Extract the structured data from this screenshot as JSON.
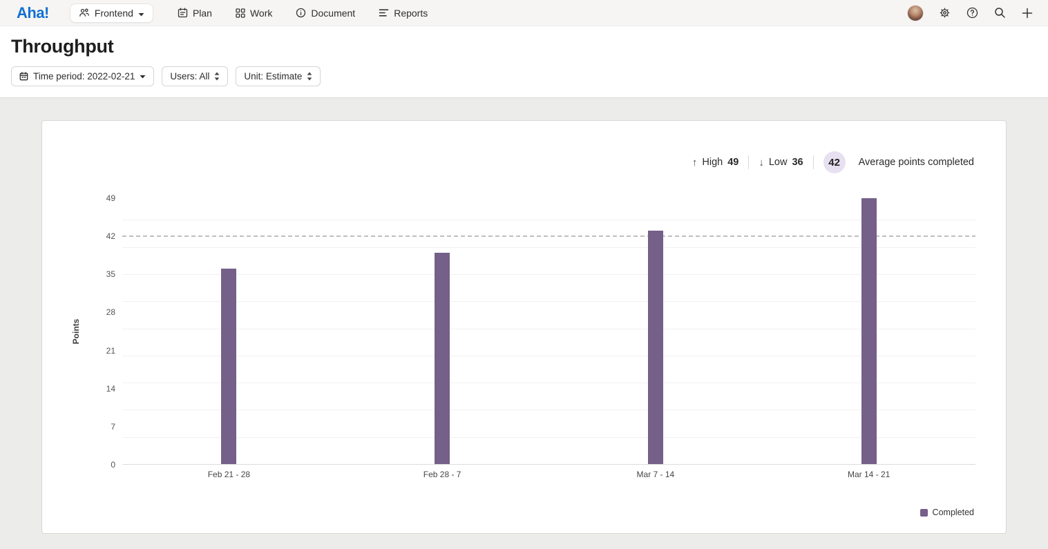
{
  "nav": {
    "logo": "Aha!",
    "workspace": {
      "label": "Frontend"
    },
    "items": [
      {
        "label": "Plan"
      },
      {
        "label": "Work"
      },
      {
        "label": "Document"
      },
      {
        "label": "Reports"
      }
    ]
  },
  "header": {
    "title": "Throughput"
  },
  "filters": {
    "time_period": {
      "label": "Time period: 2022-02-21"
    },
    "users": {
      "label": "Users: All"
    },
    "unit": {
      "label": "Unit: Estimate"
    }
  },
  "stats": {
    "high_label": "High",
    "high_value": "49",
    "low_label": "Low",
    "low_value": "36",
    "average_value": "42",
    "average_label": "Average points completed"
  },
  "icons": {
    "up_arrow": "↑",
    "down_arrow": "↓"
  },
  "chart_data": {
    "type": "bar",
    "title": "Throughput",
    "categories": [
      "Feb 21 - 28",
      "Feb 28 - 7",
      "Mar 7 - 14",
      "Mar 14 - 21"
    ],
    "series": [
      {
        "name": "Completed",
        "values": [
          36,
          39,
          43,
          49
        ]
      }
    ],
    "xlabel": "",
    "ylabel": "Points",
    "yticks": [
      0,
      7,
      14,
      21,
      28,
      35,
      42,
      49
    ],
    "ylim": [
      0,
      49
    ],
    "gridline_step": 5,
    "grid": true,
    "average_line": 42,
    "high": 49,
    "low": 36,
    "legend_position": "bottom-right",
    "bar_color": "#756089"
  },
  "colors": {
    "brand_blue": "#1170d2",
    "bar_purple": "#756089",
    "average_badge_bg": "#e7e0f0",
    "average_line_gray": "#bfbebd"
  }
}
